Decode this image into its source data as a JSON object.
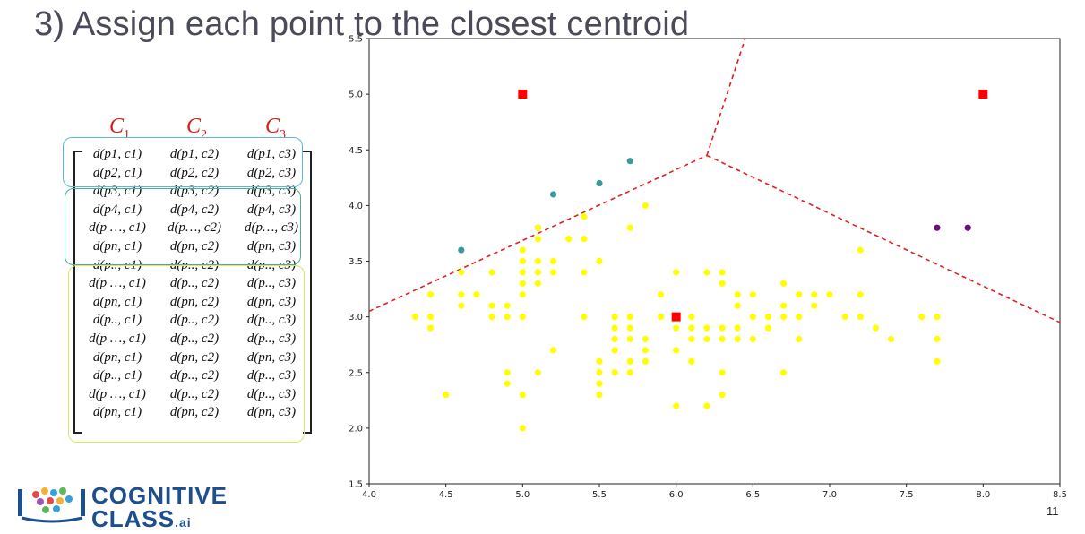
{
  "slide": {
    "title": "3) Assign each point to the closest centroid",
    "page_number": "11",
    "logo_text": "COGNITIVE",
    "logo_text_2": "CLASS",
    "logo_suffix": ".ai"
  },
  "matrix": {
    "column_headers": [
      {
        "letter": "C",
        "sub": "1"
      },
      {
        "letter": "C",
        "sub": "2"
      },
      {
        "letter": "C",
        "sub": "3"
      }
    ],
    "rows": [
      [
        "d(p1, c1)",
        "d(p1, c2)",
        "d(p1, c3)"
      ],
      [
        "d(p2, c1)",
        "d(p2, c2)",
        "d(p2, c3)"
      ],
      [
        "d(p3, c1)",
        "d(p3, c2)",
        "d(p3, c3)"
      ],
      [
        "d(p4, c1)",
        "d(p4, c2)",
        "d(p4, c3)"
      ],
      [
        "d(p …, c1)",
        "d(p…, c2)",
        "d(p…, c3)"
      ],
      [
        "d(pn, c1)",
        "d(pn, c2)",
        "d(pn, c3)"
      ],
      [
        "d(p.., c1)",
        "d(p.., c2)",
        "d(p.., c3)"
      ],
      [
        "d(p …, c1)",
        "d(p.., c2)",
        "d(p.., c3)"
      ],
      [
        "d(pn, c1)",
        "d(pn, c2)",
        "d(pn, c3)"
      ],
      [
        "d(p.., c1)",
        "d(p.., c2)",
        "d(p.., c3)"
      ],
      [
        "d(p …, c1)",
        "d(p.., c2)",
        "d(p.., c3)"
      ],
      [
        "d(pn, c1)",
        "d(pn, c2)",
        "d(pn, c3)"
      ],
      [
        "d(p.., c1)",
        "d(p.., c2)",
        "d(p.., c3)"
      ],
      [
        "d(p …, c1)",
        "d(p.., c2)",
        "d(p.., c3)"
      ],
      [
        "d(pn, c1)",
        "d(pn, c2)",
        "d(pn, c3)"
      ]
    ],
    "group_colors": [
      "#5bb8d6",
      "#4fae8c",
      "#d8e86a"
    ]
  },
  "chart_data": {
    "type": "scatter",
    "title": "",
    "xlabel": "",
    "ylabel": "",
    "xlim": [
      4.0,
      8.5
    ],
    "ylim": [
      1.5,
      5.5
    ],
    "xticks": [
      "4.0",
      "4.5",
      "5.0",
      "5.5",
      "6.0",
      "6.5",
      "7.0",
      "7.5",
      "8.0",
      "8.5"
    ],
    "yticks": [
      "1.5",
      "2.0",
      "2.5",
      "3.0",
      "3.5",
      "4.0",
      "4.5",
      "5.0",
      "5.5"
    ],
    "grid": false,
    "colors": {
      "yellow": "#ffff00",
      "teal": "#3a9a9a",
      "purple": "#6a0f7a",
      "centroid": "#ff0000",
      "boundary": "#e02020"
    },
    "centroids": [
      [
        5.0,
        5.0
      ],
      [
        8.0,
        5.0
      ],
      [
        6.0,
        3.0
      ]
    ],
    "boundaries": [
      [
        [
          4.0,
          3.05
        ],
        [
          6.2,
          4.45
        ]
      ],
      [
        [
          6.2,
          4.45
        ],
        [
          8.5,
          2.95
        ]
      ],
      [
        [
          6.2,
          4.45
        ],
        [
          6.45,
          5.5
        ]
      ]
    ],
    "series": [
      {
        "color": "teal",
        "points": [
          [
            4.6,
            3.6
          ],
          [
            5.1,
            3.8
          ],
          [
            5.2,
            4.1
          ],
          [
            5.5,
            4.2
          ],
          [
            5.7,
            4.4
          ]
        ]
      },
      {
        "color": "purple",
        "points": [
          [
            7.7,
            3.8
          ],
          [
            7.9,
            3.8
          ]
        ]
      },
      {
        "color": "yellow",
        "points": [
          [
            4.3,
            3.0
          ],
          [
            4.4,
            3.2
          ],
          [
            4.4,
            3.0
          ],
          [
            4.4,
            2.9
          ],
          [
            4.5,
            2.3
          ],
          [
            4.6,
            3.4
          ],
          [
            4.6,
            3.2
          ],
          [
            4.6,
            3.1
          ],
          [
            4.7,
            3.2
          ],
          [
            4.8,
            3.4
          ],
          [
            4.8,
            3.1
          ],
          [
            4.8,
            3.0
          ],
          [
            4.9,
            3.1
          ],
          [
            4.9,
            3.0
          ],
          [
            4.9,
            2.5
          ],
          [
            4.9,
            2.4
          ],
          [
            5.0,
            3.6
          ],
          [
            5.0,
            3.5
          ],
          [
            5.0,
            3.4
          ],
          [
            5.0,
            3.3
          ],
          [
            5.0,
            3.2
          ],
          [
            5.0,
            3.0
          ],
          [
            5.0,
            2.3
          ],
          [
            5.0,
            2.0
          ],
          [
            5.1,
            3.8
          ],
          [
            5.1,
            3.7
          ],
          [
            5.1,
            3.5
          ],
          [
            5.1,
            3.4
          ],
          [
            5.1,
            3.3
          ],
          [
            5.1,
            2.5
          ],
          [
            5.2,
            3.5
          ],
          [
            5.2,
            3.4
          ],
          [
            5.2,
            2.7
          ],
          [
            5.3,
            3.7
          ],
          [
            5.4,
            3.9
          ],
          [
            5.4,
            3.7
          ],
          [
            5.4,
            3.4
          ],
          [
            5.4,
            3.0
          ],
          [
            5.5,
            3.5
          ],
          [
            5.5,
            2.6
          ],
          [
            5.5,
            2.5
          ],
          [
            5.5,
            2.4
          ],
          [
            5.5,
            2.3
          ],
          [
            5.6,
            3.0
          ],
          [
            5.6,
            2.9
          ],
          [
            5.6,
            2.8
          ],
          [
            5.6,
            2.7
          ],
          [
            5.6,
            2.5
          ],
          [
            5.7,
            3.8
          ],
          [
            5.7,
            3.0
          ],
          [
            5.7,
            2.9
          ],
          [
            5.7,
            2.8
          ],
          [
            5.7,
            2.6
          ],
          [
            5.7,
            2.5
          ],
          [
            5.8,
            4.0
          ],
          [
            5.8,
            2.8
          ],
          [
            5.8,
            2.7
          ],
          [
            5.8,
            2.6
          ],
          [
            5.9,
            3.2
          ],
          [
            5.9,
            3.0
          ],
          [
            6.0,
            3.4
          ],
          [
            6.0,
            3.0
          ],
          [
            6.0,
            2.9
          ],
          [
            6.0,
            2.7
          ],
          [
            6.0,
            2.2
          ],
          [
            6.1,
            3.0
          ],
          [
            6.1,
            2.9
          ],
          [
            6.1,
            2.8
          ],
          [
            6.1,
            2.6
          ],
          [
            6.2,
            3.4
          ],
          [
            6.2,
            2.9
          ],
          [
            6.2,
            2.8
          ],
          [
            6.2,
            2.2
          ],
          [
            6.3,
            3.4
          ],
          [
            6.3,
            3.3
          ],
          [
            6.3,
            2.9
          ],
          [
            6.3,
            2.8
          ],
          [
            6.3,
            2.5
          ],
          [
            6.3,
            2.3
          ],
          [
            6.4,
            3.2
          ],
          [
            6.4,
            3.1
          ],
          [
            6.4,
            2.9
          ],
          [
            6.4,
            2.8
          ],
          [
            6.5,
            3.2
          ],
          [
            6.5,
            3.0
          ],
          [
            6.5,
            2.8
          ],
          [
            6.6,
            3.0
          ],
          [
            6.6,
            2.9
          ],
          [
            6.7,
            3.3
          ],
          [
            6.7,
            3.1
          ],
          [
            6.7,
            3.0
          ],
          [
            6.7,
            2.5
          ],
          [
            6.8,
            3.2
          ],
          [
            6.8,
            3.0
          ],
          [
            6.8,
            2.8
          ],
          [
            6.9,
            3.2
          ],
          [
            6.9,
            3.1
          ],
          [
            7.0,
            3.2
          ],
          [
            7.1,
            3.0
          ],
          [
            7.2,
            3.6
          ],
          [
            7.2,
            3.2
          ],
          [
            7.2,
            3.0
          ],
          [
            7.3,
            2.9
          ],
          [
            7.4,
            2.8
          ],
          [
            7.6,
            3.0
          ],
          [
            7.7,
            3.0
          ],
          [
            7.7,
            2.8
          ],
          [
            7.7,
            2.6
          ]
        ]
      }
    ]
  }
}
